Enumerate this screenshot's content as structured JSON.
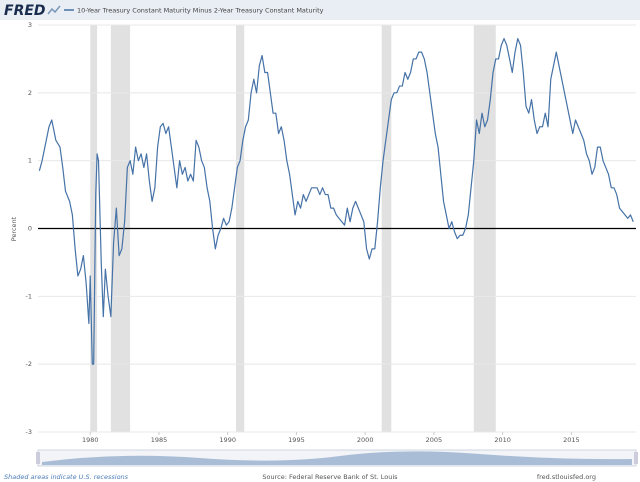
{
  "chart_data": {
    "type": "line",
    "logo": "FRED",
    "legend_label": "10-Year Treasury Constant Maturity Minus 2-Year Treasury Constant Maturity",
    "ylabel": "Percent",
    "recession_note": "Shaded areas indicate U.S. recessions",
    "source": "Source: Federal Reserve Bank of St. Louis",
    "url": "fred.stlouisfed.org",
    "xlim": [
      1976.2,
      2019.7
    ],
    "xticks": [
      1980,
      1985,
      1990,
      1995,
      2000,
      2005,
      2010,
      2015
    ],
    "ylim": [
      -3,
      3
    ],
    "yticks": [
      -3,
      -2,
      -1,
      0,
      1,
      2,
      3
    ],
    "grid": true,
    "recession_color": "#e1e1e1",
    "recessions": [
      [
        1980.0,
        1980.5
      ],
      [
        1981.5,
        1982.9
      ],
      [
        1990.6,
        1991.2
      ],
      [
        2001.2,
        2001.9
      ],
      [
        2007.9,
        2009.5
      ]
    ],
    "x": [
      1976.3,
      1976.5,
      1976.8,
      1977.0,
      1977.2,
      1977.5,
      1977.8,
      1978.0,
      1978.2,
      1978.5,
      1978.7,
      1978.9,
      1979.1,
      1979.3,
      1979.5,
      1979.7,
      1979.9,
      1980.0,
      1980.15,
      1980.25,
      1980.4,
      1980.5,
      1980.6,
      1980.8,
      1980.95,
      1981.1,
      1981.3,
      1981.5,
      1981.7,
      1981.9,
      1982.1,
      1982.3,
      1982.5,
      1982.7,
      1982.9,
      1983.1,
      1983.3,
      1983.5,
      1983.7,
      1983.9,
      1984.1,
      1984.3,
      1984.5,
      1984.7,
      1984.9,
      1985.1,
      1985.3,
      1985.5,
      1985.7,
      1985.9,
      1986.1,
      1986.3,
      1986.5,
      1986.7,
      1986.9,
      1987.1,
      1987.3,
      1987.5,
      1987.7,
      1987.9,
      1988.1,
      1988.3,
      1988.5,
      1988.7,
      1988.9,
      1989.1,
      1989.3,
      1989.5,
      1989.7,
      1989.9,
      1990.1,
      1990.3,
      1990.5,
      1990.7,
      1990.9,
      1991.1,
      1991.3,
      1991.5,
      1991.7,
      1991.9,
      1992.1,
      1992.3,
      1992.5,
      1992.7,
      1992.9,
      1993.1,
      1993.3,
      1993.5,
      1993.7,
      1993.9,
      1994.1,
      1994.3,
      1994.5,
      1994.7,
      1994.9,
      1995.1,
      1995.3,
      1995.5,
      1995.7,
      1995.9,
      1996.1,
      1996.3,
      1996.5,
      1996.7,
      1996.9,
      1997.1,
      1997.3,
      1997.5,
      1997.7,
      1997.9,
      1998.1,
      1998.3,
      1998.5,
      1998.7,
      1998.9,
      1999.1,
      1999.3,
      1999.5,
      1999.7,
      1999.9,
      2000.1,
      2000.3,
      2000.5,
      2000.7,
      2000.9,
      2001.1,
      2001.3,
      2001.5,
      2001.7,
      2001.9,
      2002.1,
      2002.3,
      2002.5,
      2002.7,
      2002.9,
      2003.1,
      2003.3,
      2003.5,
      2003.7,
      2003.9,
      2004.1,
      2004.3,
      2004.5,
      2004.7,
      2004.9,
      2005.1,
      2005.3,
      2005.5,
      2005.7,
      2005.9,
      2006.1,
      2006.3,
      2006.5,
      2006.7,
      2006.9,
      2007.1,
      2007.3,
      2007.5,
      2007.7,
      2007.9,
      2008.1,
      2008.3,
      2008.5,
      2008.7,
      2008.9,
      2009.1,
      2009.3,
      2009.5,
      2009.7,
      2009.9,
      2010.1,
      2010.3,
      2010.5,
      2010.7,
      2010.9,
      2011.1,
      2011.3,
      2011.5,
      2011.7,
      2011.9,
      2012.1,
      2012.3,
      2012.5,
      2012.7,
      2012.9,
      2013.1,
      2013.3,
      2013.5,
      2013.7,
      2013.9,
      2014.1,
      2014.3,
      2014.5,
      2014.7,
      2014.9,
      2015.1,
      2015.3,
      2015.5,
      2015.7,
      2015.9,
      2016.1,
      2016.3,
      2016.5,
      2016.7,
      2016.9,
      2017.1,
      2017.3,
      2017.5,
      2017.7,
      2017.9,
      2018.1,
      2018.3,
      2018.5,
      2018.7,
      2018.9,
      2019.1,
      2019.3,
      2019.5
    ],
    "series": [
      {
        "name": "10-Year Treasury Constant Maturity Minus 2-Year Treasury Constant Maturity",
        "color": "#4572a7",
        "values": [
          0.85,
          1.0,
          1.3,
          1.5,
          1.6,
          1.3,
          1.2,
          0.9,
          0.55,
          0.4,
          0.2,
          -0.3,
          -0.7,
          -0.6,
          -0.4,
          -0.8,
          -1.4,
          -0.7,
          -2.0,
          -2.0,
          0.5,
          1.1,
          1.0,
          -0.5,
          -1.3,
          -0.6,
          -1.0,
          -1.3,
          -0.2,
          0.3,
          -0.4,
          -0.3,
          0.1,
          0.9,
          1.0,
          0.8,
          1.2,
          1.0,
          1.1,
          0.9,
          1.1,
          0.7,
          0.4,
          0.6,
          1.2,
          1.5,
          1.55,
          1.4,
          1.5,
          1.2,
          0.9,
          0.6,
          1.0,
          0.8,
          0.9,
          0.7,
          0.8,
          0.7,
          1.3,
          1.2,
          1.0,
          0.9,
          0.6,
          0.4,
          0.0,
          -0.3,
          -0.1,
          0.0,
          0.15,
          0.05,
          0.1,
          0.3,
          0.6,
          0.9,
          1.0,
          1.3,
          1.5,
          1.6,
          2.0,
          2.2,
          2.0,
          2.4,
          2.55,
          2.3,
          2.3,
          2.0,
          1.7,
          1.7,
          1.4,
          1.5,
          1.3,
          1.0,
          0.8,
          0.5,
          0.2,
          0.4,
          0.3,
          0.5,
          0.4,
          0.5,
          0.6,
          0.6,
          0.6,
          0.5,
          0.6,
          0.5,
          0.5,
          0.3,
          0.3,
          0.2,
          0.15,
          0.1,
          0.05,
          0.3,
          0.1,
          0.3,
          0.4,
          0.3,
          0.2,
          0.1,
          -0.3,
          -0.45,
          -0.3,
          -0.3,
          0.1,
          0.6,
          1.0,
          1.3,
          1.6,
          1.9,
          2.0,
          2.0,
          2.1,
          2.1,
          2.3,
          2.2,
          2.3,
          2.5,
          2.5,
          2.6,
          2.6,
          2.5,
          2.3,
          2.0,
          1.7,
          1.4,
          1.2,
          0.8,
          0.4,
          0.2,
          0.0,
          0.1,
          -0.05,
          -0.15,
          -0.1,
          -0.1,
          0.0,
          0.2,
          0.6,
          1.0,
          1.6,
          1.4,
          1.7,
          1.5,
          1.6,
          1.9,
          2.3,
          2.5,
          2.5,
          2.7,
          2.8,
          2.7,
          2.5,
          2.3,
          2.6,
          2.8,
          2.7,
          2.3,
          1.8,
          1.7,
          1.9,
          1.6,
          1.4,
          1.5,
          1.5,
          1.7,
          1.5,
          2.2,
          2.4,
          2.6,
          2.4,
          2.2,
          2.0,
          1.8,
          1.6,
          1.4,
          1.6,
          1.5,
          1.4,
          1.3,
          1.1,
          1.0,
          0.8,
          0.9,
          1.2,
          1.2,
          1.0,
          0.9,
          0.8,
          0.6,
          0.6,
          0.5,
          0.3,
          0.25,
          0.2,
          0.15,
          0.2,
          0.1
        ]
      }
    ]
  }
}
